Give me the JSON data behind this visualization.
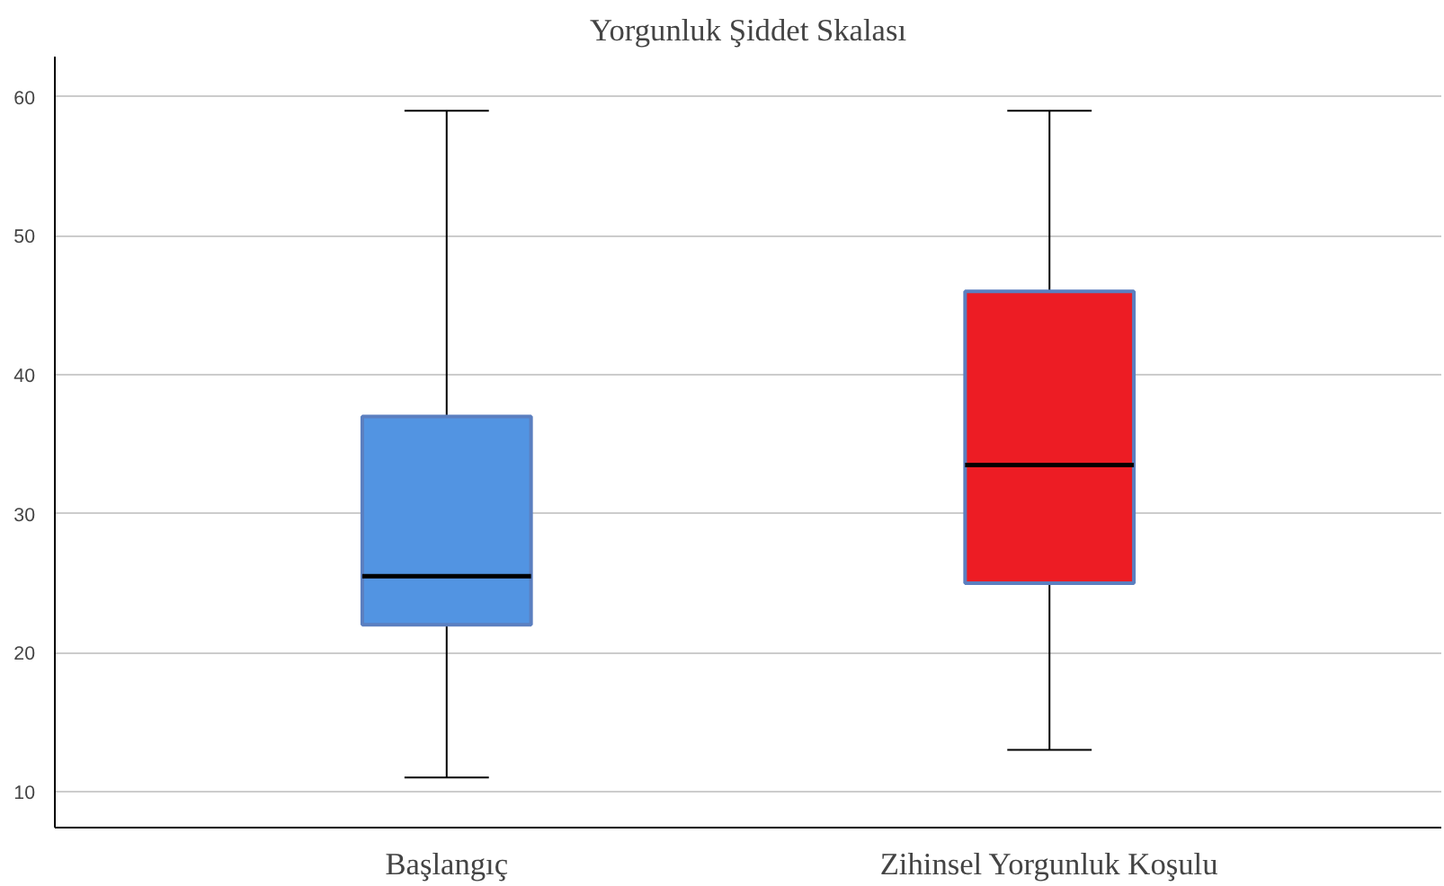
{
  "chart_data": {
    "type": "box",
    "title": "Yorgunluk Şiddet Skalası",
    "categories": [
      "Başlangıç",
      "Zihinsel Yorgunluk Koşulu"
    ],
    "boxes": [
      {
        "low": 11,
        "q1": 22,
        "median": 25.5,
        "q3": 37,
        "high": 59
      },
      {
        "low": 13,
        "q1": 25,
        "median": 33.5,
        "q3": 46,
        "high": 59
      }
    ],
    "colors": [
      "#5294e2",
      "#ed1c24"
    ],
    "ylim": [
      7.4,
      62.9
    ],
    "yticks": [
      10,
      20,
      30,
      40,
      50,
      60
    ],
    "grid": "y"
  }
}
